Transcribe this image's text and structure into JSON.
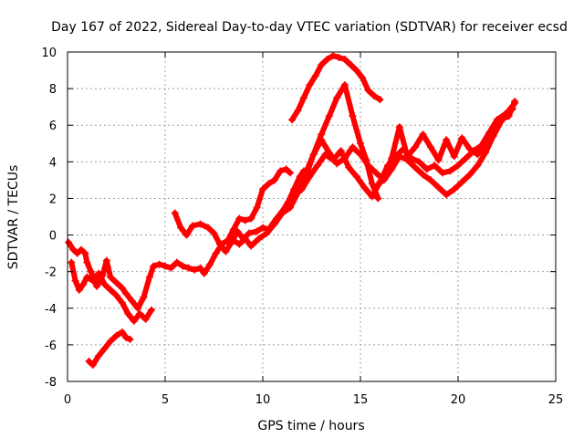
{
  "chart_data": {
    "type": "line",
    "title": "Day 167 of 2022, Sidereal Day-to-day VTEC variation (SDTVAR) for receiver ecsd",
    "xlabel": "GPS time / hours",
    "ylabel": "SDTVAR / TECUs",
    "xlim": [
      0,
      25
    ],
    "ylim": [
      -8,
      10
    ],
    "xticks": [
      0,
      5,
      10,
      15,
      20,
      25
    ],
    "yticks": [
      -8,
      -6,
      -4,
      -2,
      0,
      2,
      4,
      6,
      8,
      10
    ],
    "grid": true,
    "marker": "+",
    "color": "#ff0000",
    "series": [
      {
        "name": "track-1",
        "x": [
          0.05,
          0.3,
          0.5,
          0.7,
          0.9,
          1.0,
          1.2,
          1.5,
          1.8,
          2.0,
          2.2,
          2.5,
          2.8,
          3.0,
          3.3,
          3.6,
          3.9,
          4.2,
          4.4,
          4.7,
          5.0,
          5.3,
          5.6,
          5.9,
          6.2,
          6.5,
          6.8,
          7.0,
          7.3,
          7.6,
          7.9,
          8.2,
          8.5,
          8.8,
          9.1,
          9.4,
          9.7,
          10.0,
          10.3,
          10.6,
          10.9,
          11.2,
          11.4
        ],
        "y": [
          -0.4,
          -0.8,
          -1.0,
          -0.8,
          -1.0,
          -1.5,
          -2.0,
          -2.8,
          -2.2,
          -1.4,
          -2.3,
          -2.6,
          -2.9,
          -3.2,
          -3.6,
          -4.0,
          -3.4,
          -2.3,
          -1.7,
          -1.6,
          -1.7,
          -1.8,
          -1.5,
          -1.7,
          -1.8,
          -1.9,
          -1.8,
          -2.1,
          -1.6,
          -1.0,
          -0.5,
          -0.3,
          0.3,
          0.9,
          0.8,
          0.9,
          1.5,
          2.5,
          2.8,
          3.0,
          3.5,
          3.6,
          3.4
        ]
      },
      {
        "name": "track-2",
        "x": [
          0.2,
          0.4,
          0.6,
          0.8,
          1.0,
          1.3,
          1.6,
          1.9,
          2.2,
          2.5,
          2.8,
          3.1,
          3.4,
          3.7,
          4.0,
          4.3
        ],
        "y": [
          -1.5,
          -2.5,
          -3.0,
          -2.7,
          -2.3,
          -2.5,
          -2.1,
          -2.7,
          -3.0,
          -3.3,
          -3.7,
          -4.3,
          -4.7,
          -4.3,
          -4.6,
          -4.1
        ]
      },
      {
        "name": "track-3",
        "x": [
          1.1,
          1.3,
          1.6,
          1.9,
          2.2,
          2.5,
          2.8,
          3.0,
          3.2
        ],
        "y": [
          -6.9,
          -7.1,
          -6.6,
          -6.2,
          -5.8,
          -5.5,
          -5.3,
          -5.6,
          -5.7
        ]
      },
      {
        "name": "track-4",
        "x": [
          5.5,
          5.8,
          6.1,
          6.4,
          6.8,
          7.2,
          7.5,
          7.8,
          8.1,
          8.4,
          8.7,
          9.0,
          9.3,
          9.7,
          10.0,
          10.3,
          10.7,
          11.0,
          11.3,
          11.6,
          11.9,
          12.1
        ],
        "y": [
          1.2,
          0.4,
          0.0,
          0.5,
          0.6,
          0.4,
          0.1,
          -0.5,
          -0.9,
          -0.4,
          0.2,
          -0.2,
          0.1,
          0.2,
          0.4,
          0.3,
          0.9,
          1.3,
          1.8,
          2.5,
          3.2,
          3.5
        ]
      },
      {
        "name": "track-5",
        "x": [
          8.5,
          8.8,
          9.1,
          9.4,
          9.8,
          10.2,
          10.6,
          11.0,
          11.4,
          11.8,
          12.2,
          12.6,
          13.0,
          13.4,
          13.8,
          14.2,
          14.6,
          15.0,
          15.3,
          15.6,
          15.9
        ],
        "y": [
          -0.3,
          -0.5,
          -0.2,
          -0.6,
          -0.2,
          0.1,
          0.6,
          1.2,
          1.5,
          2.3,
          3.2,
          4.4,
          5.5,
          6.5,
          7.5,
          8.2,
          6.5,
          5.0,
          4.1,
          2.8,
          2.0
        ]
      },
      {
        "name": "track-6",
        "x": [
          11.5,
          11.8,
          12.1,
          12.4,
          12.7,
          13.0,
          13.3,
          13.6,
          13.9,
          14.2,
          14.5,
          14.8,
          15.1,
          15.4,
          15.7,
          16.0
        ],
        "y": [
          6.3,
          6.8,
          7.5,
          8.2,
          8.7,
          9.3,
          9.6,
          9.8,
          9.7,
          9.6,
          9.3,
          9.0,
          8.6,
          7.9,
          7.6,
          7.4
        ]
      },
      {
        "name": "track-7",
        "x": [
          12.0,
          12.4,
          12.8,
          13.2,
          13.6,
          14.0,
          14.4,
          14.8,
          15.2,
          15.6,
          16.0,
          16.4,
          16.8,
          17.2,
          17.6,
          18.0,
          18.4,
          18.8,
          19.2,
          19.6,
          20.0,
          20.4,
          20.8,
          21.2,
          21.6,
          22.0,
          22.4,
          22.8
        ],
        "y": [
          2.5,
          3.2,
          3.8,
          4.4,
          4.1,
          4.6,
          3.7,
          3.2,
          2.6,
          2.1,
          2.9,
          3.8,
          4.3,
          4.7,
          4.2,
          4.0,
          3.6,
          3.8,
          3.4,
          3.5,
          3.8,
          4.2,
          4.6,
          4.9,
          5.6,
          6.3,
          6.6,
          6.9
        ]
      },
      {
        "name": "track-8",
        "x": [
          12.2,
          12.6,
          13.0,
          13.4,
          13.8,
          14.2,
          14.6,
          15.0,
          15.4,
          15.8,
          16.2,
          16.6,
          17.0,
          17.4,
          17.8,
          18.2,
          18.6,
          19.0,
          19.4,
          19.8,
          20.2,
          20.6,
          21.0,
          21.4,
          21.8,
          22.2,
          22.6,
          22.9
        ],
        "y": [
          3.4,
          4.4,
          5.2,
          4.5,
          3.9,
          4.2,
          4.8,
          4.4,
          3.8,
          3.4,
          3.0,
          3.6,
          4.3,
          4.1,
          3.7,
          3.3,
          3.0,
          2.6,
          2.2,
          2.5,
          2.9,
          3.3,
          3.8,
          4.5,
          5.4,
          6.2,
          6.8,
          7.2
        ]
      },
      {
        "name": "track-9",
        "x": [
          15.8,
          16.2,
          16.6,
          17.0,
          17.4,
          17.8,
          18.2,
          18.6,
          19.0,
          19.4,
          19.8,
          20.2,
          20.6,
          21.0,
          21.4,
          21.8,
          22.2,
          22.6,
          22.9
        ],
        "y": [
          2.6,
          3.1,
          4.2,
          5.9,
          4.3,
          4.8,
          5.5,
          4.8,
          4.1,
          5.2,
          4.3,
          5.3,
          4.7,
          4.4,
          5.0,
          5.9,
          6.3,
          6.5,
          7.3
        ]
      }
    ]
  }
}
